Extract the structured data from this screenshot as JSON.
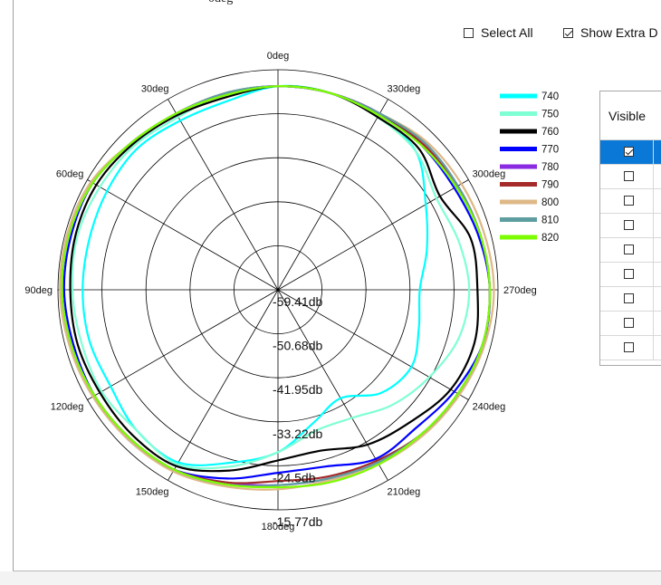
{
  "header": {
    "title_partial": "0deg"
  },
  "controls": {
    "select_all_label": "Select All",
    "select_all_checked": false,
    "show_extra_label": "Show Extra D",
    "show_extra_checked": true
  },
  "table": {
    "header_label": "Visible",
    "rows": [
      {
        "checked": true,
        "selected": true
      },
      {
        "checked": false,
        "selected": false
      },
      {
        "checked": false,
        "selected": false
      },
      {
        "checked": false,
        "selected": false
      },
      {
        "checked": false,
        "selected": false
      },
      {
        "checked": false,
        "selected": false
      },
      {
        "checked": false,
        "selected": false
      },
      {
        "checked": false,
        "selected": false
      },
      {
        "checked": false,
        "selected": false
      }
    ]
  },
  "chart_data": {
    "type": "line",
    "projection": "polar",
    "angle_direction": "counterclockwise",
    "zero_angle_position": "top",
    "angle_ticks": [
      {
        "deg": 0,
        "label": "0deg"
      },
      {
        "deg": 30,
        "label": "30deg"
      },
      {
        "deg": 60,
        "label": "60deg"
      },
      {
        "deg": 90,
        "label": "90deg"
      },
      {
        "deg": 120,
        "label": "120deg"
      },
      {
        "deg": 150,
        "label": "150deg"
      },
      {
        "deg": 180,
        "label": "180deg"
      },
      {
        "deg": 210,
        "label": "210deg"
      },
      {
        "deg": 240,
        "label": "240deg"
      },
      {
        "deg": 270,
        "label": "270deg"
      },
      {
        "deg": 300,
        "label": "300deg"
      },
      {
        "deg": 330,
        "label": "330deg"
      }
    ],
    "radial_range_db": [
      -59.41,
      -6.0
    ],
    "radial_ticks": [
      {
        "value": -59.41,
        "label": "-59.41db"
      },
      {
        "value": -50.68,
        "label": "-50.68db"
      },
      {
        "value": -41.95,
        "label": "-41.95db"
      },
      {
        "value": -33.22,
        "label": "-33.22db"
      },
      {
        "value": -24.5,
        "label": "-24.5db"
      },
      {
        "value": -15.77,
        "label": "-15.77db"
      }
    ],
    "legend_position": "top-right",
    "series": [
      {
        "name": "740",
        "color": "#00ffff",
        "angles": [
          0,
          15,
          30,
          45,
          60,
          75,
          90,
          105,
          120,
          135,
          150,
          165,
          180,
          195,
          210,
          225,
          240,
          255,
          270,
          285,
          300,
          315,
          330,
          345
        ],
        "values": [
          -10,
          -12,
          -12,
          -11,
          -11.5,
          -12,
          -12,
          -12,
          -12.5,
          -11,
          -11,
          -16,
          -20,
          -26,
          -29,
          -24,
          -22,
          -24,
          -25,
          -22,
          -18,
          -12,
          -11,
          -10
        ]
      },
      {
        "name": "750",
        "color": "#7fffd4",
        "angles": [
          0,
          15,
          30,
          45,
          60,
          75,
          90,
          105,
          120,
          135,
          150,
          165,
          180,
          195,
          210,
          225,
          240,
          255,
          270,
          285,
          300,
          315,
          330,
          345
        ],
        "values": [
          -10,
          -10,
          -11,
          -10,
          -9.5,
          -9,
          -9.5,
          -10,
          -10,
          -11,
          -10.5,
          -15,
          -20,
          -24,
          -23.5,
          -20,
          -17,
          -14,
          -13,
          -14,
          -15,
          -12,
          -11,
          -10
        ]
      },
      {
        "name": "760",
        "color": "#000000",
        "angles": [
          0,
          15,
          30,
          45,
          60,
          75,
          90,
          105,
          120,
          135,
          150,
          165,
          180,
          195,
          210,
          225,
          240,
          255,
          270,
          285,
          300,
          315,
          330,
          345
        ],
        "values": [
          -10,
          -11,
          -10.5,
          -9.5,
          -8.5,
          -8.5,
          -9,
          -9,
          -9.5,
          -9.5,
          -10,
          -14,
          -18,
          -19,
          -16,
          -14,
          -11,
          -10,
          -11,
          -11,
          -14,
          -11,
          -11,
          -10
        ]
      },
      {
        "name": "770",
        "color": "#0000ff",
        "angles": [
          0,
          15,
          30,
          45,
          60,
          75,
          90,
          105,
          120,
          135,
          150,
          165,
          180,
          195,
          210,
          225,
          240,
          255,
          270,
          285,
          300,
          315,
          330,
          345
        ],
        "values": [
          -10,
          -10,
          -10,
          -9,
          -7.5,
          -7.5,
          -7.5,
          -8,
          -8,
          -8,
          -9,
          -12,
          -15,
          -15,
          -12,
          -12,
          -10,
          -8,
          -8,
          -9,
          -10,
          -10,
          -10,
          -10
        ]
      },
      {
        "name": "780",
        "color": "#8a2be2",
        "angles": [
          0,
          15,
          30,
          45,
          60,
          75,
          90,
          105,
          120,
          135,
          150,
          165,
          180,
          195,
          210,
          225,
          240,
          255,
          270,
          285,
          300,
          315,
          330,
          345
        ],
        "values": [
          -10,
          -10,
          -10,
          -9,
          -7.5,
          -7,
          -7,
          -7.5,
          -8,
          -8.5,
          -9,
          -11,
          -12,
          -12,
          -11,
          -10,
          -9,
          -8,
          -8,
          -8.5,
          -9,
          -9,
          -10,
          -10
        ]
      },
      {
        "name": "790",
        "color": "#a52a2a",
        "angles": [
          0,
          15,
          30,
          45,
          60,
          75,
          90,
          105,
          120,
          135,
          150,
          165,
          180,
          195,
          210,
          225,
          240,
          255,
          270,
          285,
          300,
          315,
          330,
          345
        ],
        "values": [
          -10,
          -10,
          -10,
          -9,
          -7.5,
          -7,
          -7,
          -7.5,
          -8,
          -8.5,
          -9,
          -11,
          -13,
          -12.5,
          -11.5,
          -10,
          -9,
          -8,
          -8,
          -8.5,
          -9,
          -9.5,
          -10,
          -10
        ]
      },
      {
        "name": "800",
        "color": "#deb887",
        "angles": [
          0,
          15,
          30,
          45,
          60,
          75,
          90,
          105,
          120,
          135,
          150,
          165,
          180,
          195,
          210,
          225,
          240,
          255,
          270,
          285,
          300,
          315,
          330,
          345
        ],
        "values": [
          -10,
          -10,
          -10,
          -9,
          -7,
          -6.5,
          -6.5,
          -7,
          -7.5,
          -8,
          -8.5,
          -10,
          -11,
          -11.5,
          -10.5,
          -9.5,
          -8.5,
          -7.5,
          -7,
          -7.5,
          -8,
          -8.5,
          -10,
          -10
        ]
      },
      {
        "name": "810",
        "color": "#5f9ea0",
        "angles": [
          0,
          15,
          30,
          45,
          60,
          75,
          90,
          105,
          120,
          135,
          150,
          165,
          180,
          195,
          210,
          225,
          240,
          255,
          270,
          285,
          300,
          315,
          330,
          345
        ],
        "values": [
          -10,
          -10,
          -10,
          -9,
          -7.5,
          -7,
          -7,
          -7.5,
          -8,
          -8.5,
          -9,
          -10.5,
          -12,
          -12,
          -11,
          -10,
          -9,
          -8,
          -8,
          -8.5,
          -9,
          -9,
          -10,
          -10
        ]
      },
      {
        "name": "820",
        "color": "#7cfc00",
        "angles": [
          0,
          15,
          30,
          45,
          60,
          75,
          90,
          105,
          120,
          135,
          150,
          165,
          180,
          195,
          210,
          225,
          240,
          255,
          270,
          285,
          300,
          315,
          330,
          345
        ],
        "values": [
          -10,
          -10.5,
          -10,
          -9,
          -7.5,
          -7,
          -7,
          -7.5,
          -8,
          -8.5,
          -9,
          -10.5,
          -11.5,
          -11,
          -10.5,
          -10,
          -9,
          -8,
          -8,
          -8.5,
          -9.5,
          -10,
          -10.5,
          -10
        ]
      }
    ]
  }
}
